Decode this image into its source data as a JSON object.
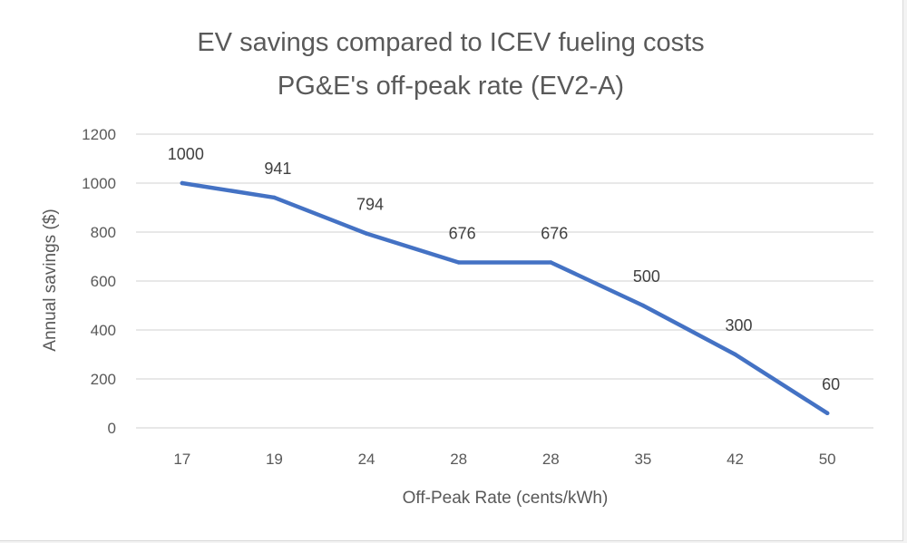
{
  "chart_data": {
    "type": "line",
    "title": [
      "EV savings compared to ICEV fueling costs",
      "PG&E's off-peak rate (EV2-A)"
    ],
    "xlabel": "Off-Peak Rate (cents/kWh)",
    "ylabel": "Annual savings ($)",
    "categories": [
      "17",
      "19",
      "24",
      "28",
      "28",
      "35",
      "42",
      "50"
    ],
    "values": [
      1000,
      941,
      794,
      676,
      676,
      500,
      300,
      60
    ],
    "data_labels": [
      "1000",
      "941",
      "794",
      "676",
      "676",
      "500",
      "300",
      "60"
    ],
    "ylim": [
      0,
      1200
    ],
    "y_ticks": [
      "0",
      "200",
      "400",
      "600",
      "800",
      "1000",
      "1200"
    ],
    "grid": "horizontal",
    "legend": "none",
    "line_color": "#4472c4",
    "grid_color": "#d9d9d9"
  }
}
